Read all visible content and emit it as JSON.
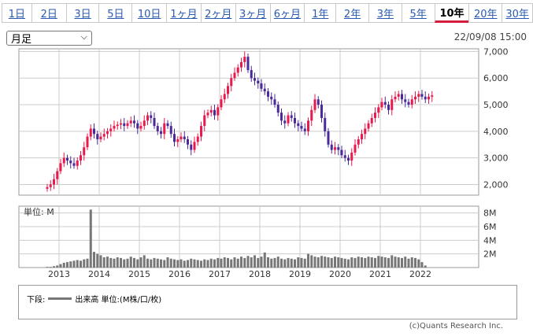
{
  "tabs": [
    {
      "label": "1日",
      "active": false
    },
    {
      "label": "2日",
      "active": false
    },
    {
      "label": "3日",
      "active": false
    },
    {
      "label": "5日",
      "active": false
    },
    {
      "label": "10日",
      "active": false
    },
    {
      "label": "1ヶ月",
      "active": false
    },
    {
      "label": "2ヶ月",
      "active": false
    },
    {
      "label": "3ヶ月",
      "active": false
    },
    {
      "label": "6ヶ月",
      "active": false
    },
    {
      "label": "1年",
      "active": false
    },
    {
      "label": "2年",
      "active": false
    },
    {
      "label": "3年",
      "active": false
    },
    {
      "label": "5年",
      "active": false
    },
    {
      "label": "10年",
      "active": true
    },
    {
      "label": "20年",
      "active": false
    },
    {
      "label": "30年",
      "active": false
    }
  ],
  "period_select": {
    "value": "月足"
  },
  "datetime": "22/09/08 15:00",
  "volume_unit_label": "単位: M",
  "legend": {
    "prefix": "下段:",
    "text": "出来高 単位:(M株/口/枚)"
  },
  "credit": "(c)Quants Research Inc.",
  "colors": {
    "up": "#e8194c",
    "down": "#4a2a9a",
    "volume": "#777777",
    "active_tab": "#d41c3c",
    "grid": "#cccccc"
  },
  "chart_data": [
    {
      "type": "candlestick",
      "title": "",
      "x_tick_labels": [
        "2013",
        "2014",
        "2015",
        "2016",
        "2017",
        "2018",
        "2019",
        "2020",
        "2021",
        "2022"
      ],
      "y_tick_labels": [
        "2,000",
        "3,000",
        "4,000",
        "5,000",
        "6,000",
        "7,000"
      ],
      "ylim": [
        1600,
        7100
      ],
      "grid": true,
      "approx_monthly_close": [
        1900,
        2000,
        2200,
        2500,
        2800,
        3000,
        2900,
        2800,
        2700,
        2900,
        3100,
        3400,
        3800,
        4100,
        3900,
        3700,
        3800,
        3900,
        4000,
        4100,
        4200,
        4250,
        4300,
        4200,
        4300,
        4400,
        4300,
        4100,
        4200,
        4400,
        4600,
        4500,
        4200,
        4000,
        3900,
        4300,
        4200,
        3900,
        3600,
        3700,
        3800,
        3700,
        3500,
        3300,
        3600,
        3800,
        4200,
        4600,
        4700,
        4800,
        4600,
        4900,
        5200,
        5400,
        5700,
        6000,
        6200,
        6400,
        6600,
        6800,
        6300,
        6000,
        5900,
        5800,
        5600,
        5500,
        5300,
        5200,
        5000,
        4700,
        4400,
        4300,
        4600,
        4500,
        4300,
        4200,
        4100,
        4000,
        4400,
        4800,
        5200,
        5000,
        4500,
        4000,
        3500,
        3300,
        3400,
        3300,
        3100,
        3000,
        2900,
        3200,
        3500,
        3700,
        3900,
        4100,
        4300,
        4500,
        4700,
        4900,
        5100,
        5000,
        4800,
        5200,
        5300,
        5400,
        5200,
        5100,
        5000,
        5200,
        5300,
        5400,
        5300,
        5200,
        5300,
        5350
      ]
    },
    {
      "type": "bar",
      "title": "",
      "y_tick_labels": [
        "2M",
        "4M",
        "6M",
        "8M"
      ],
      "ylim": [
        0,
        9
      ],
      "approx_monthly_volume_m": [
        0.1,
        0.1,
        0.2,
        0.3,
        0.5,
        0.7,
        0.8,
        0.9,
        1.0,
        1.1,
        1.0,
        1.2,
        1.3,
        8.5,
        2.3,
        2.0,
        1.8,
        1.5,
        1.6,
        1.4,
        1.3,
        1.5,
        1.4,
        1.2,
        1.3,
        1.6,
        1.4,
        1.2,
        1.5,
        1.8,
        1.3,
        1.2,
        1.4,
        1.3,
        1.2,
        1.1,
        1.5,
        1.3,
        1.2,
        1.1,
        1.2,
        1.0,
        1.1,
        1.3,
        1.2,
        1.1,
        1.0,
        1.2,
        1.1,
        1.3,
        1.2,
        1.4,
        1.3,
        1.5,
        1.4,
        1.2,
        1.5,
        1.3,
        1.6,
        1.4,
        1.7,
        1.5,
        1.8,
        1.4,
        1.6,
        2.2,
        1.5,
        1.3,
        1.4,
        1.6,
        1.3,
        1.2,
        1.4,
        1.3,
        1.2,
        1.5,
        1.4,
        1.3,
        2.0,
        1.8,
        1.6,
        1.5,
        1.7,
        1.6,
        1.5,
        1.4,
        1.6,
        1.5,
        1.4,
        1.3,
        1.2,
        1.5,
        1.4,
        1.6,
        1.5,
        1.4,
        1.6,
        1.5,
        1.4,
        1.7,
        1.6,
        1.5,
        1.4,
        1.8,
        1.6,
        1.5,
        1.4,
        1.6,
        1.3,
        1.5,
        1.4,
        1.2,
        0.8,
        0.3
      ]
    }
  ]
}
